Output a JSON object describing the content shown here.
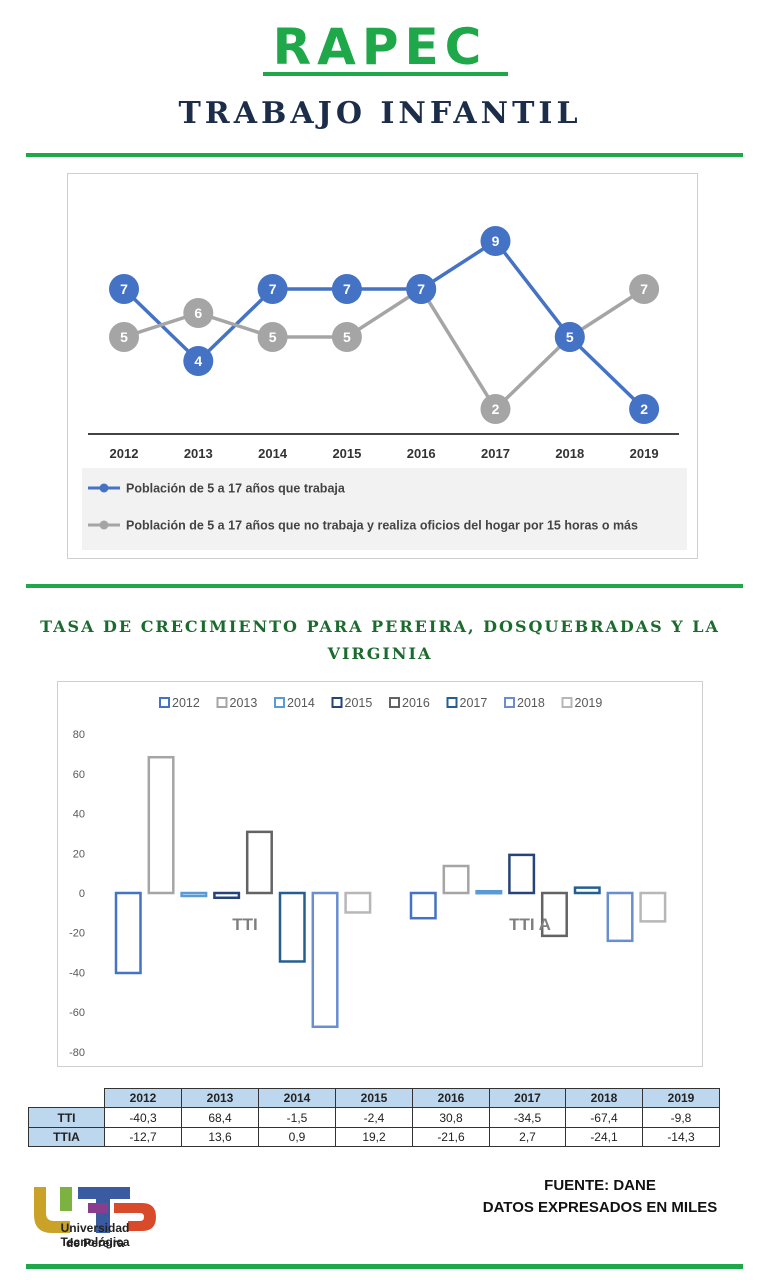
{
  "header": {
    "brand": "RAPEC",
    "subtitle": "TRABAJO INFANTIL"
  },
  "colors": {
    "accent_green": "#1fa84a",
    "title_navy": "#1c2d4a",
    "section_green": "#1a6b2d",
    "series_blue": "#4472c4",
    "series_gray": "#a5a5a5"
  },
  "chart_data": [
    {
      "type": "line",
      "title": "",
      "categories": [
        "2012",
        "2013",
        "2014",
        "2015",
        "2016",
        "2017",
        "2018",
        "2019"
      ],
      "series": [
        {
          "name": "Población de 5 a 17 años que trabaja",
          "color": "#4472c4",
          "values": [
            7,
            4,
            7,
            7,
            7,
            9,
            5,
            2
          ]
        },
        {
          "name": "Población de 5 a 17 años que no trabaja y realiza oficios del hogar por 15 horas o más",
          "color": "#a5a5a5",
          "values": [
            5,
            6,
            5,
            5,
            7,
            2,
            5,
            7
          ]
        }
      ],
      "data_labels": true,
      "legend_position": "bottom",
      "ylim": [
        0,
        11
      ]
    },
    {
      "type": "bar",
      "title": "TASA DE CRECIMIENTO PARA PEREIRA, DOSQUEBRADAS Y LA VIRGINIA",
      "categories": [
        "TTI",
        "TTIA"
      ],
      "category_labels": [
        "TTI",
        "TTI A"
      ],
      "series": [
        {
          "name": "2012",
          "color": "#4472c4",
          "values": [
            -40.3,
            -12.7
          ]
        },
        {
          "name": "2013",
          "color": "#a5a5a5",
          "values": [
            68.4,
            13.6
          ]
        },
        {
          "name": "2014",
          "color": "#5b9bd5",
          "values": [
            -1.5,
            0.9
          ]
        },
        {
          "name": "2015",
          "color": "#264478",
          "values": [
            -2.4,
            19.2
          ]
        },
        {
          "name": "2016",
          "color": "#636363",
          "values": [
            30.8,
            -21.6
          ]
        },
        {
          "name": "2017",
          "color": "#255e91",
          "values": [
            -34.5,
            2.7
          ]
        },
        {
          "name": "2018",
          "color": "#698ed0",
          "values": [
            -67.4,
            -24.1
          ]
        },
        {
          "name": "2019",
          "color": "#b7b7b7",
          "values": [
            -9.8,
            -14.3
          ]
        }
      ],
      "yticks": [
        "80",
        "60",
        "40",
        "20",
        "0",
        "-20",
        "-40",
        "-60",
        "-80"
      ],
      "ylim": [
        -80,
        80
      ],
      "legend_position": "top",
      "grid": false
    }
  ],
  "table": {
    "headers": [
      "2012",
      "2013",
      "2014",
      "2015",
      "2016",
      "2017",
      "2018",
      "2019"
    ],
    "rows": [
      {
        "label": "TTI",
        "values": [
          "-40,3",
          "68,4",
          "-1,5",
          "-2,4",
          "30,8",
          "-34,5",
          "-67,4",
          "-9,8"
        ]
      },
      {
        "label": "TTIA",
        "values": [
          "-12,7",
          "13,6",
          "0,9",
          "19,2",
          "-21,6",
          "2,7",
          "-24,1",
          "-14,3"
        ]
      }
    ]
  },
  "logo": {
    "name": "Universidad Tecnológica",
    "sub": "de Pereira"
  },
  "footer": {
    "source": "FUENTE: DANE",
    "note": "DATOS EXPRESADOS EN MILES"
  }
}
